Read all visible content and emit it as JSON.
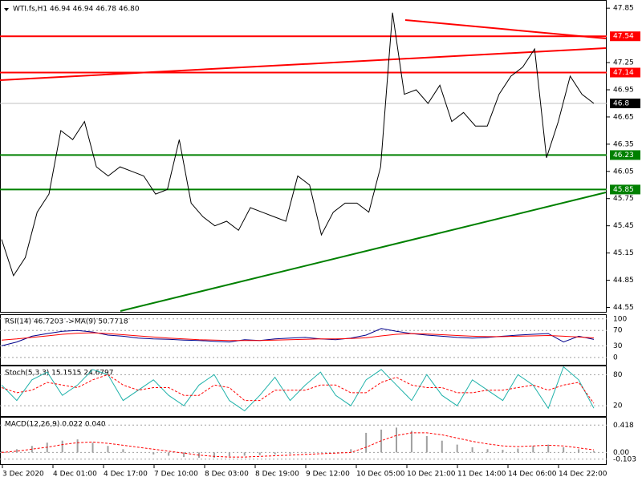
{
  "chart_data": {
    "type": "line",
    "title": "WTI.fs,H1  46.94 46.94 46.78 46.80",
    "xtick_labels": [
      "3 Dec 2020",
      "4 Dec 01:00",
      "4 Dec 17:00",
      "7 Dec 10:00",
      "8 Dec 03:00",
      "8 Dec 19:00",
      "9 Dec 12:00",
      "10 Dec 05:00",
      "10 Dec 21:00",
      "11 Dec 14:00",
      "14 Dec 06:00",
      "14 Dec 22:00"
    ],
    "values": [
      45.3,
      44.9,
      45.1,
      45.6,
      45.8,
      46.5,
      46.4,
      46.6,
      46.1,
      46.0,
      46.1,
      46.05,
      46.0,
      45.8,
      45.85,
      46.4,
      45.7,
      45.55,
      45.45,
      45.5,
      45.4,
      45.65,
      45.6,
      45.55,
      45.5,
      46.0,
      45.9,
      45.35,
      45.6,
      45.7,
      45.7,
      45.6,
      46.1,
      47.8,
      46.9,
      46.95,
      46.8,
      47.0,
      46.6,
      46.7,
      46.55,
      46.55,
      46.9,
      47.1,
      47.2,
      47.4,
      46.2,
      46.6,
      47.1,
      46.9,
      46.8
    ],
    "color": "#000000",
    "ylim": [
      44.51,
      47.94
    ],
    "yticks": [
      47.85,
      47.25,
      46.95,
      46.65,
      46.35,
      46.05,
      45.75,
      45.45,
      45.15,
      44.85,
      44.55
    ],
    "levels": [
      {
        "value": 47.54,
        "color": "#ff0000"
      },
      {
        "value": 47.14,
        "color": "#ff0000"
      },
      {
        "value": 46.8,
        "color": "#000000"
      },
      {
        "value": 46.23,
        "color": "#008000"
      },
      {
        "value": 45.85,
        "color": "#008000"
      }
    ],
    "indicators": [
      {
        "title": "RSI(14) 46.7203  ->MA(9) 50.7718",
        "ylim": [
          -19,
          110
        ],
        "yticks": [
          100,
          70,
          30,
          0
        ],
        "series": [
          {
            "color": "#00008b",
            "values": [
              30,
              40,
              55,
              62,
              68,
              70,
              66,
              58,
              55,
              50,
              48,
              47,
              45,
              44,
              42,
              40,
              46,
              44,
              48,
              50,
              52,
              48,
              46,
              50,
              58,
              75,
              68,
              62,
              58,
              55,
              52,
              50,
              52,
              55,
              58,
              60,
              62,
              40,
              55,
              46.72
            ]
          },
          {
            "color": "#ff0000",
            "values": [
              45,
              48,
              52,
              56,
              60,
              63,
              64,
              62,
              59,
              56,
              53,
              50,
              48,
              46,
              45,
              44,
              44,
              44,
              45,
              46,
              47,
              48,
              48,
              49,
              51,
              56,
              60,
              62,
              61,
              59,
              57,
              55,
              54,
              54,
              55,
              56,
              57,
              55,
              53,
              50.77
            ]
          }
        ]
      },
      {
        "title": "Stoch(5,3,3) 15.1515 24.6797",
        "ylim": [
          0,
          96
        ],
        "yticks": [
          80,
          20
        ],
        "series": [
          {
            "color": "#20b2aa",
            "values": [
              60,
              30,
              70,
              85,
              40,
              60,
              90,
              80,
              30,
              50,
              70,
              40,
              20,
              60,
              80,
              30,
              10,
              40,
              75,
              30,
              60,
              85,
              40,
              20,
              70,
              90,
              60,
              30,
              80,
              40,
              20,
              70,
              50,
              30,
              80,
              60,
              15,
              95,
              70,
              15.15
            ]
          },
          {
            "color": "#ff0000",
            "dashed": true,
            "values": [
              55,
              45,
              50,
              65,
              60,
              55,
              70,
              80,
              60,
              50,
              55,
              55,
              40,
              40,
              60,
              55,
              30,
              30,
              50,
              50,
              50,
              60,
              60,
              45,
              45,
              65,
              75,
              60,
              55,
              55,
              45,
              45,
              50,
              50,
              55,
              60,
              50,
              60,
              65,
              24.68
            ]
          }
        ]
      },
      {
        "title": "MACD(12,26,9) 0.022 0.040",
        "ylim": [
          -0.179,
          0.532
        ],
        "yticks": [
          0.418,
          {
            "value": 0,
            "label": "0.00"
          },
          -0.103
        ],
        "series": [
          {
            "color": "#a0a0a0",
            "histogram": true,
            "values": [
              0.02,
              0.05,
              0.1,
              0.15,
              0.18,
              0.2,
              0.15,
              0.1,
              0.05,
              0.0,
              -0.03,
              -0.05,
              -0.07,
              -0.08,
              -0.08,
              -0.06,
              -0.05,
              -0.04,
              -0.03,
              -0.02,
              -0.01,
              0.0,
              0.0,
              0.05,
              0.3,
              0.35,
              0.38,
              0.33,
              0.25,
              0.18,
              0.12,
              0.08,
              0.05,
              0.04,
              0.06,
              0.1,
              0.12,
              0.08,
              0.05,
              0.022
            ]
          },
          {
            "color": "#ff0000",
            "dashed": true,
            "values": [
              0.0,
              0.02,
              0.05,
              0.08,
              0.12,
              0.15,
              0.16,
              0.14,
              0.11,
              0.08,
              0.05,
              0.02,
              -0.01,
              -0.04,
              -0.06,
              -0.07,
              -0.07,
              -0.06,
              -0.05,
              -0.04,
              -0.03,
              -0.02,
              -0.01,
              0.0,
              0.08,
              0.18,
              0.26,
              0.3,
              0.3,
              0.27,
              0.22,
              0.17,
              0.13,
              0.1,
              0.09,
              0.1,
              0.11,
              0.1,
              0.07,
              0.04
            ]
          }
        ]
      }
    ]
  }
}
